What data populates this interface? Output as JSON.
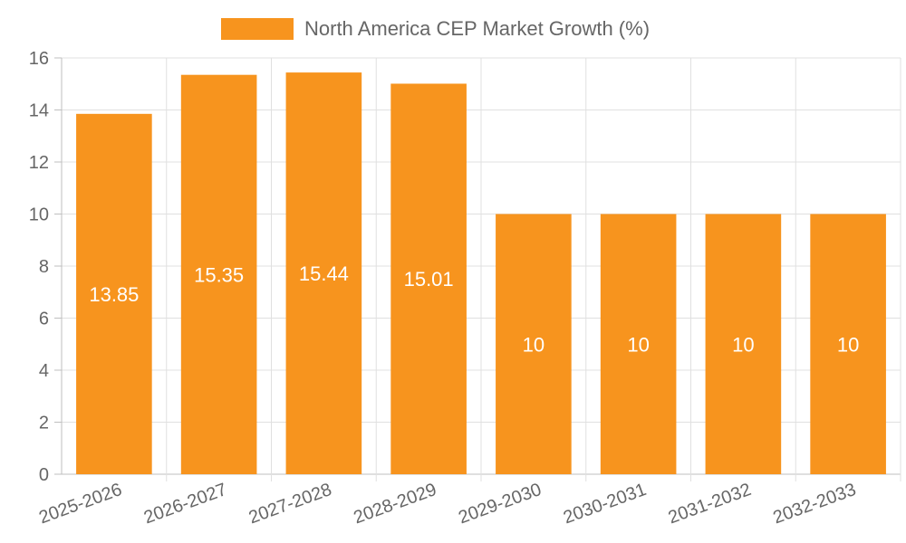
{
  "chart_data": {
    "type": "bar",
    "categories": [
      "2025-2026",
      "2026-2027",
      "2027-2028",
      "2028-2029",
      "2029-2030",
      "2030-2031",
      "2031-2032",
      "2032-2033"
    ],
    "series": [
      {
        "name": "North America CEP Market Growth (%)",
        "values": [
          13.85,
          15.35,
          15.44,
          15.01,
          10,
          10,
          10,
          10
        ],
        "color": "#F7941E"
      }
    ],
    "data_labels": [
      "13.85",
      "15.35",
      "15.44",
      "15.01",
      "10",
      "10",
      "10",
      "10"
    ],
    "ylim": [
      0,
      16
    ],
    "y_ticks": [
      "0",
      "2",
      "4",
      "6",
      "8",
      "10",
      "12",
      "14",
      "16"
    ],
    "grid": true,
    "legend_position": "top-center"
  }
}
